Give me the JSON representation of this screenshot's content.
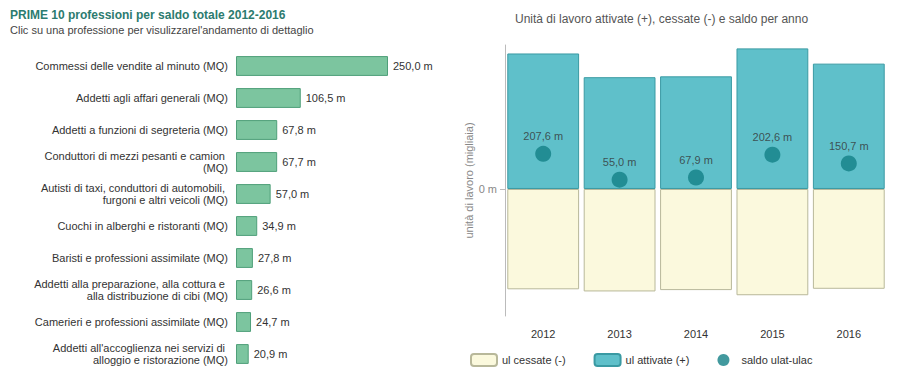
{
  "chart_data": [
    {
      "type": "bar",
      "title": "PRIME 10 professioni per saldo totale 2012-2016",
      "subtitle": "Clic su una professione per visulizzarel'andamento di dettaglio",
      "orientation": "horizontal",
      "categories": [
        "Commessi delle vendite al minuto (MQ)",
        "Addetti agli affari generali (MQ)",
        "Addetti a funzioni di segreteria (MQ)",
        "Conduttori di mezzi pesanti e camion (MQ)",
        "Autisti di taxi, conduttori di automobili, furgoni e altri veicoli (MQ)",
        "Cuochi in alberghi e ristoranti (MQ)",
        "Baristi e professioni assimilate (MQ)",
        "Addetti alla preparazione, alla cottura e alla distribuzione di cibi (MQ)",
        "Camerieri e professioni assimilate (MQ)",
        "Addetti all'accoglienza nei servizi di alloggio e ristorazione (MQ)"
      ],
      "values": [
        250.0,
        106.5,
        67.8,
        67.7,
        57.0,
        34.9,
        27.8,
        26.6,
        24.7,
        20.9
      ],
      "value_labels": [
        "250,0 m",
        "106,5 m",
        "67,8 m",
        "67,7 m",
        "57,0 m",
        "34,9 m",
        "27,8 m",
        "26,6 m",
        "24,7 m",
        "20,9 m"
      ],
      "color": "#7cc59f",
      "xlim": [
        0,
        250
      ],
      "tick_labels": "y",
      "data_labels": true,
      "grid": false
    },
    {
      "type": "bar",
      "title": "Unità di lavoro attivate (+), cessate (-) e saldo per anno",
      "ylabel": "unità di lavoro (migliaia)",
      "categories": [
        "2012",
        "2013",
        "2014",
        "2015",
        "2016"
      ],
      "series": [
        {
          "name": "ul cessate (-)",
          "color": "#fbf9dd",
          "values": [
            -592.4,
            -605.0,
            -597.1,
            -627.4,
            -589.3
          ]
        },
        {
          "name": "ul attivate (+)",
          "color": "#5fc0ca",
          "values": [
            800.0,
            660.0,
            665.0,
            830.0,
            740.0
          ]
        },
        {
          "name": "saldo ulat-ulac",
          "type": "scatter",
          "color": "#137f86",
          "values": [
            207.6,
            55.0,
            67.9,
            202.6,
            150.7
          ],
          "value_labels": [
            "207,6 m",
            "55,0 m",
            "67,9 m",
            "202,6 m",
            "150,7 m"
          ],
          "data_labels": true
        }
      ],
      "stacked": true,
      "ylim": [
        -750,
        850
      ],
      "yticks": [
        {
          "value": 0,
          "label": "0 m"
        }
      ],
      "legend": "bottom",
      "grid": false
    }
  ]
}
